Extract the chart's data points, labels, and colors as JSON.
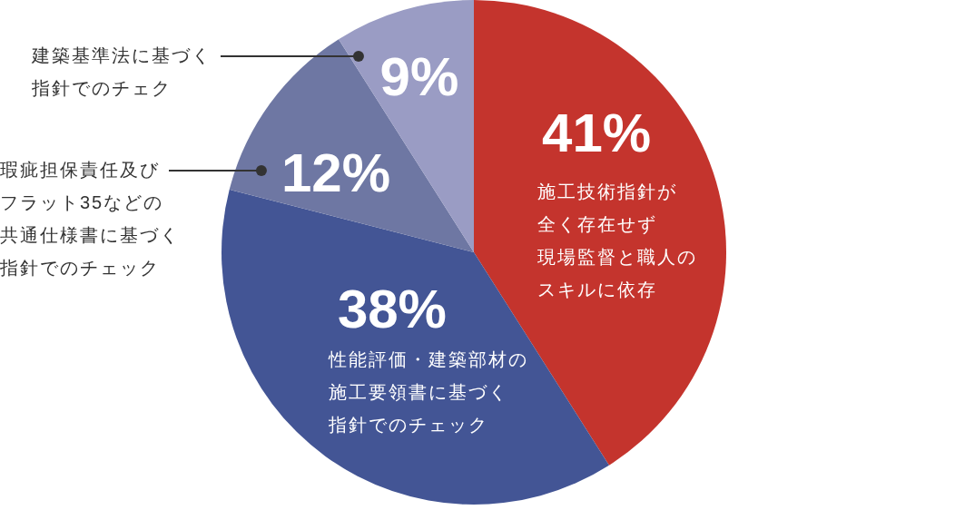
{
  "chart_data": {
    "type": "pie",
    "categories": [
      "施工技術指針が全く存在せず現場監督と職人のスキルに依存",
      "性能評価・建築部材の施工要領書に基づく指針でのチェック",
      "瑕疵担保責任及びフラット35などの共通仕様書に基づく指針でのチェック",
      "建築基準法に基づく指針でのチェク"
    ],
    "values": [
      41,
      38,
      12,
      9
    ],
    "value_labels": [
      "41%",
      "38%",
      "12%",
      "9%"
    ],
    "colors": [
      "#c4342d",
      "#435595",
      "#6e77a3",
      "#9a9cc4"
    ],
    "legend": false
  }
}
